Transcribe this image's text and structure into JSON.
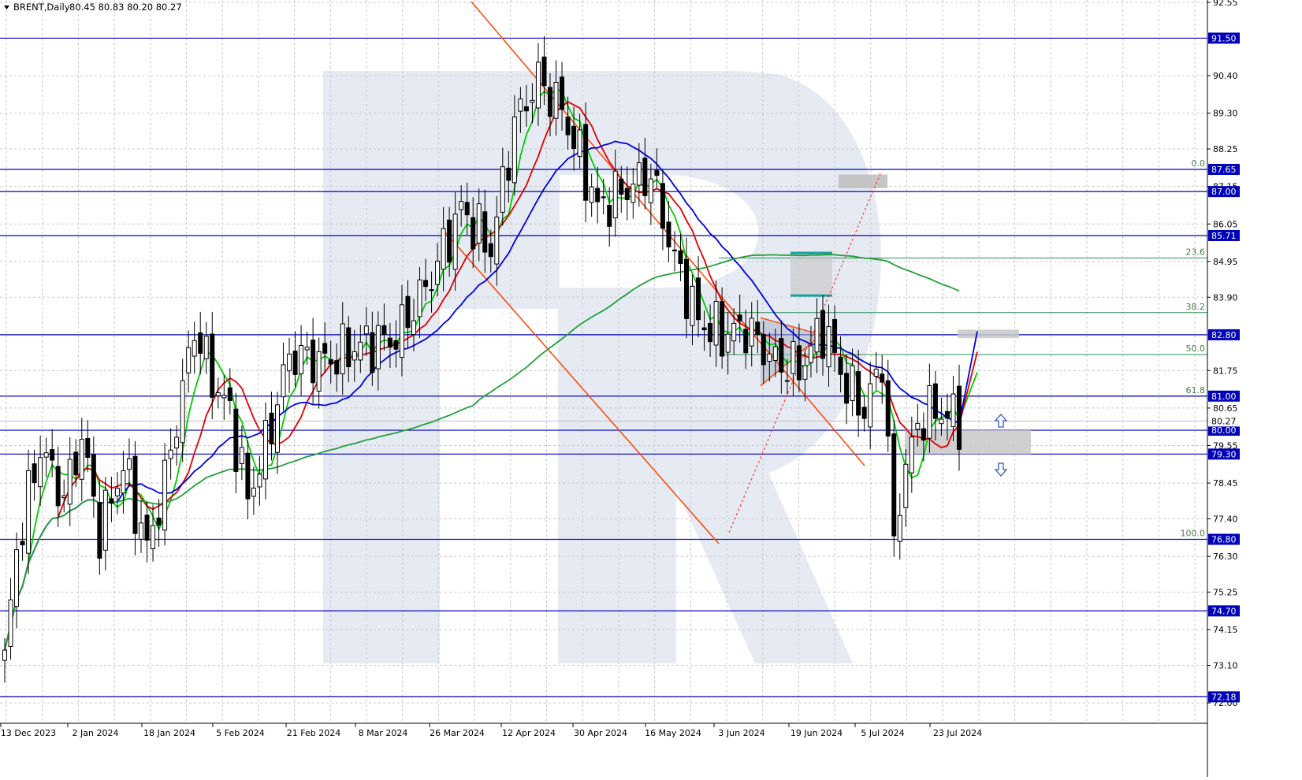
{
  "header": {
    "symbol": "BRENT,Daily",
    "ohlc": "80.45 80.83 80.20 80.27"
  },
  "chart_data": {
    "type": "candlestick",
    "symbol": "BRENT",
    "timeframe": "Daily",
    "last_ohlc": {
      "open": 80.45,
      "high": 80.83,
      "low": 80.2,
      "close": 80.27
    },
    "ylim": [
      72.0,
      92.55
    ],
    "grid": true,
    "x_tick_labels": [
      "13 Dec 2023",
      "2 Jan 2024",
      "18 Jan 2024",
      "5 Feb 2024",
      "21 Feb 2024",
      "8 Mar 2024",
      "26 Mar 2024",
      "12 Apr 2024",
      "30 Apr 2024",
      "16 May 2024",
      "3 Jun 2024",
      "19 Jun 2024",
      "5 Jul 2024",
      "23 Jul 2024"
    ],
    "y_tick_labels": [
      "92.55",
      "90.40",
      "89.30",
      "88.25",
      "87.15",
      "86.05",
      "84.95",
      "83.90",
      "81.75",
      "80.65",
      "79.55",
      "78.45",
      "77.40",
      "76.30",
      "75.25",
      "74.15",
      "73.10",
      "72.00"
    ],
    "y_tick_values": [
      92.55,
      90.4,
      89.3,
      88.25,
      87.15,
      86.05,
      84.95,
      83.9,
      81.75,
      80.65,
      79.55,
      78.45,
      77.4,
      76.3,
      75.25,
      74.15,
      73.1,
      72.0
    ],
    "horizontal_levels": [
      {
        "value": 91.5,
        "label": "91.50"
      },
      {
        "value": 87.65,
        "label": "87.65"
      },
      {
        "value": 87.0,
        "label": "87.00"
      },
      {
        "value": 85.71,
        "label": "85.71"
      },
      {
        "value": 82.8,
        "label": "82.80"
      },
      {
        "value": 81.0,
        "label": "81.00"
      },
      {
        "value": 80.0,
        "label": "80.00"
      },
      {
        "value": 79.3,
        "label": "79.30"
      },
      {
        "value": 76.8,
        "label": "76.80"
      },
      {
        "value": 74.7,
        "label": "74.70"
      },
      {
        "value": 72.18,
        "label": "72.18"
      }
    ],
    "current_price": {
      "value": 80.27,
      "label": "80.27"
    },
    "fibonacci": [
      {
        "label": "0.0",
        "value": 87.65
      },
      {
        "label": "23.6",
        "value": 85.05
      },
      {
        "label": "38.2",
        "value": 83.45
      },
      {
        "label": "50.0",
        "value": 82.22
      },
      {
        "label": "61.8",
        "value": 81.0
      },
      {
        "label": "100.0",
        "value": 76.8
      }
    ],
    "moving_averages": [
      {
        "color": "#00cc00"
      },
      {
        "color": "#e00000"
      },
      {
        "color": "#0000dd"
      },
      {
        "color": "#22a03c"
      }
    ],
    "colors": {
      "bull_body": "#ffffff",
      "bear_body": "#000000",
      "level_line": "#0000bb",
      "level_label_bg": "#0000bb",
      "channel_line": "#ff4400",
      "fib_line": "#2e8b57",
      "watermark": "#e6eaf2",
      "grid": "#c8c8c8"
    }
  }
}
